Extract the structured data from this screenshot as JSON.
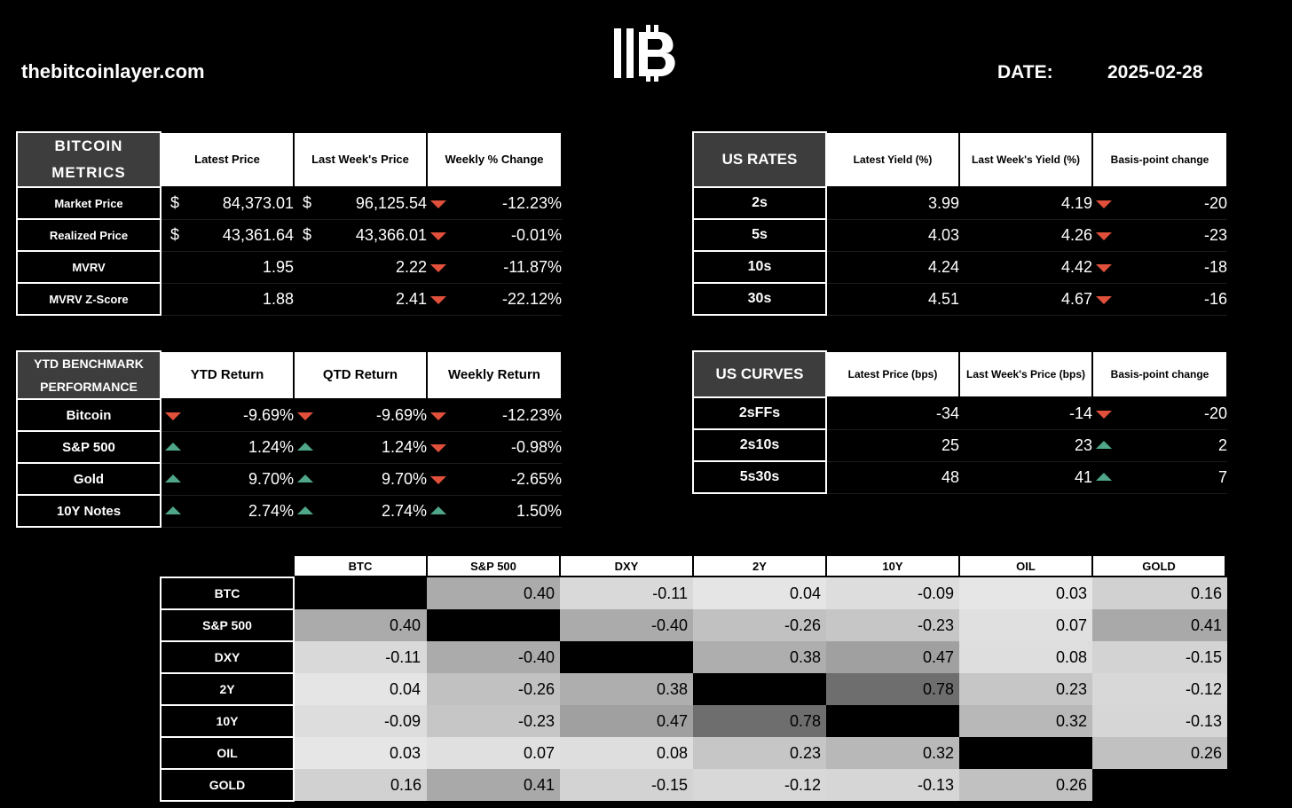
{
  "site": "thebitcoinlayer.com",
  "date_label": "DATE:",
  "date_value": "2025-02-28",
  "bitcoin_metrics": {
    "corner": "BITCOIN METRICS",
    "headers": [
      "Latest Price",
      "Last Week's Price",
      "Weekly % Change"
    ],
    "rows": [
      {
        "label": "Market Price",
        "latest": "84,373.01",
        "last": "96,125.54",
        "change": "-12.23%",
        "dir": "down",
        "dollar": "$"
      },
      {
        "label": "Realized Price",
        "latest": "43,361.64",
        "last": "43,366.01",
        "change": "-0.01%",
        "dir": "down",
        "dollar": "$"
      },
      {
        "label": "MVRV",
        "latest": "1.95",
        "last": "2.22",
        "change": "-11.87%",
        "dir": "down",
        "dollar": ""
      },
      {
        "label": "MVRV Z-Score",
        "latest": "1.88",
        "last": "2.41",
        "change": "-22.12%",
        "dir": "down",
        "dollar": ""
      }
    ]
  },
  "us_rates": {
    "corner": "US RATES",
    "headers": [
      "Latest Yield (%)",
      "Last Week's Yield (%)",
      "Basis-point change"
    ],
    "rows": [
      {
        "label": "2s",
        "latest": "3.99",
        "last": "4.19",
        "change": "-20",
        "dir": "down"
      },
      {
        "label": "5s",
        "latest": "4.03",
        "last": "4.26",
        "change": "-23",
        "dir": "down"
      },
      {
        "label": "10s",
        "latest": "4.24",
        "last": "4.42",
        "change": "-18",
        "dir": "down"
      },
      {
        "label": "30s",
        "latest": "4.51",
        "last": "4.67",
        "change": "-16",
        "dir": "down"
      }
    ]
  },
  "ytd": {
    "corner": "YTD BENCHMARK PERFORMANCE",
    "headers": [
      "YTD Return",
      "QTD Return",
      "Weekly Return"
    ],
    "rows": [
      {
        "label": "Bitcoin",
        "ytd": "-9.69%",
        "ytd_dir": "down",
        "qtd": "-9.69%",
        "qtd_dir": "down",
        "weekly": "-12.23%",
        "weekly_dir": "down"
      },
      {
        "label": "S&P 500",
        "ytd": "1.24%",
        "ytd_dir": "up",
        "qtd": "1.24%",
        "qtd_dir": "up",
        "weekly": "-0.98%",
        "weekly_dir": "down"
      },
      {
        "label": "Gold",
        "ytd": "9.70%",
        "ytd_dir": "up",
        "qtd": "9.70%",
        "qtd_dir": "up",
        "weekly": "-2.65%",
        "weekly_dir": "down"
      },
      {
        "label": "10Y Notes",
        "ytd": "2.74%",
        "ytd_dir": "up",
        "qtd": "2.74%",
        "qtd_dir": "up",
        "weekly": "1.50%",
        "weekly_dir": "up"
      }
    ]
  },
  "us_curves": {
    "corner": "US CURVES",
    "headers": [
      "Latest Price (bps)",
      "Last Week's Price (bps)",
      "Basis-point change"
    ],
    "rows": [
      {
        "label": "2sFFs",
        "latest": "-34",
        "last": "-14",
        "change": "-20",
        "dir": "down"
      },
      {
        "label": "2s10s",
        "latest": "25",
        "last": "23",
        "change": "2",
        "dir": "up"
      },
      {
        "label": "5s30s",
        "latest": "48",
        "last": "41",
        "change": "7",
        "dir": "up"
      }
    ]
  },
  "correlation": {
    "labels": [
      "BTC",
      "S&P 500",
      "DXY",
      "2Y",
      "10Y",
      "OIL",
      "GOLD"
    ],
    "matrix": [
      [
        "",
        "0.40",
        "-0.11",
        "0.04",
        "-0.09",
        "0.03",
        "0.16"
      ],
      [
        "0.40",
        "",
        "-0.40",
        "-0.26",
        "-0.23",
        "0.07",
        "0.41"
      ],
      [
        "-0.11",
        "-0.40",
        "",
        "0.38",
        "0.47",
        "0.08",
        "-0.15"
      ],
      [
        "0.04",
        "-0.26",
        "0.38",
        "",
        "0.78",
        "0.23",
        "-0.12"
      ],
      [
        "-0.09",
        "-0.23",
        "0.47",
        "0.78",
        "",
        "0.32",
        "-0.13"
      ],
      [
        "0.03",
        "0.07",
        "0.08",
        "0.23",
        "0.32",
        "",
        "0.26"
      ],
      [
        "0.16",
        "0.41",
        "-0.15",
        "-0.12",
        "-0.13",
        "0.26",
        ""
      ]
    ]
  },
  "colors": {
    "down": "#e0503a",
    "up": "#4fa68a"
  }
}
